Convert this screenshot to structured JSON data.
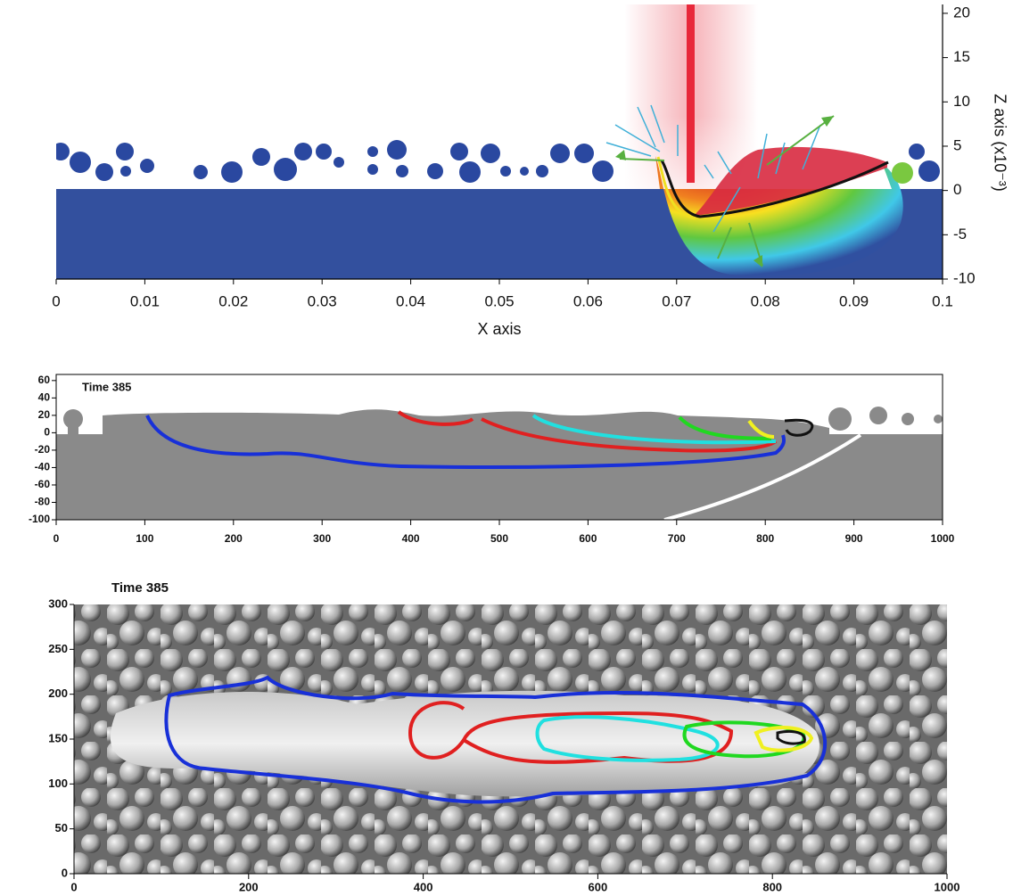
{
  "chart_data": [
    {
      "type": "field",
      "xlabel": "X axis",
      "ylabel": "Z axis (x10⁻³)",
      "xlim": [
        0,
        0.1
      ],
      "xticks": [
        0,
        0.01,
        0.02,
        0.03,
        0.04,
        0.05,
        0.06,
        0.07,
        0.08,
        0.09,
        0.1
      ],
      "ylim": [
        -10,
        21
      ],
      "yticks": [
        20,
        15,
        10,
        5,
        0,
        -5,
        -10
      ]
    },
    {
      "type": "field",
      "title": "Time 385",
      "xlim": [
        0,
        1000
      ],
      "xticks": [
        0,
        100,
        200,
        300,
        400,
        500,
        600,
        700,
        800,
        900,
        1000
      ],
      "ylim": [
        -100,
        67
      ],
      "yticks": [
        60,
        40,
        20,
        0,
        -20,
        -40,
        -60,
        -80,
        -100
      ]
    },
    {
      "type": "field",
      "title": "Time 385",
      "xlim": [
        0,
        1000
      ],
      "xticks": [
        0,
        200,
        400,
        600,
        800,
        1000
      ],
      "ylim": [
        0,
        300
      ],
      "yticks": [
        0,
        50,
        100,
        150,
        200,
        250,
        300
      ]
    }
  ]
}
